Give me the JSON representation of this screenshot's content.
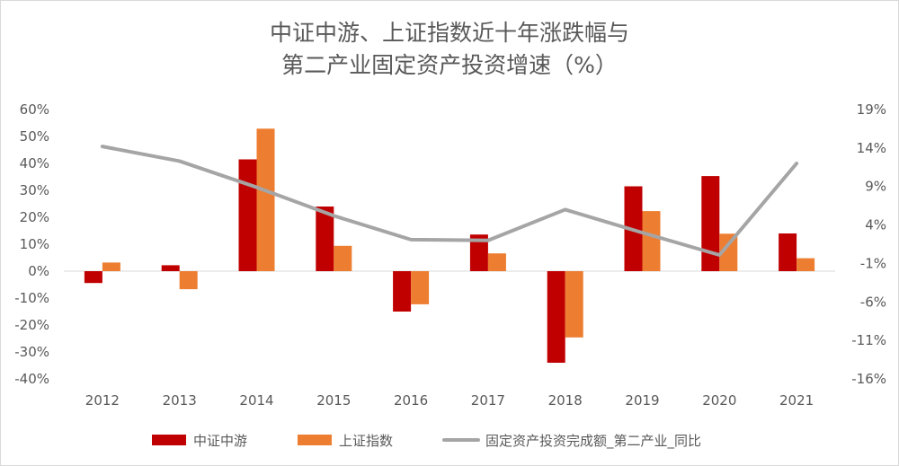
{
  "chart_data": {
    "type": "bar",
    "title": [
      "中证中游、上证指数近十年涨跌幅与",
      "第二产业固定资产投资增速（%）"
    ],
    "categories": [
      "2012",
      "2013",
      "2014",
      "2015",
      "2016",
      "2017",
      "2018",
      "2019",
      "2020",
      "2021"
    ],
    "series": [
      {
        "name": "中证中游",
        "kind": "bar",
        "axis": "left",
        "color": "#c00000",
        "values": [
          -4.4,
          2.2,
          41.5,
          24.0,
          -15.0,
          13.6,
          -34.0,
          31.5,
          35.3,
          14.0
        ]
      },
      {
        "name": "上证指数",
        "kind": "bar",
        "axis": "left",
        "color": "#ed7d31",
        "values": [
          3.2,
          -6.7,
          52.9,
          9.4,
          -12.3,
          6.6,
          -24.6,
          22.3,
          13.9,
          4.8
        ]
      },
      {
        "name": "固定资产投资完成额_第二产业_同比",
        "kind": "line",
        "axis": "right",
        "color": "#a5a5a5",
        "values": [
          14.2,
          12.3,
          8.9,
          5.2,
          2.1,
          2.0,
          6.0,
          3.0,
          0.1,
          12.0
        ]
      }
    ],
    "y_left": {
      "ylim": [
        -40,
        60
      ],
      "ticks": [
        60,
        50,
        40,
        30,
        20,
        10,
        0,
        -10,
        -20,
        -30,
        -40
      ],
      "tick_labels": [
        "60%",
        "50%",
        "40%",
        "30%",
        "20%",
        "10%",
        "0%",
        "-10%",
        "-20%",
        "-30%",
        "-40%"
      ]
    },
    "y_right": {
      "ylim": [
        -16,
        19
      ],
      "ticks": [
        19,
        14,
        9,
        4,
        -1,
        -6,
        -11,
        -16
      ],
      "tick_labels": [
        "19%",
        "14%",
        "9%",
        "4%",
        "-1%",
        "-6%",
        "-11%",
        "-16%"
      ]
    },
    "grid": false,
    "legend": "bottom"
  }
}
